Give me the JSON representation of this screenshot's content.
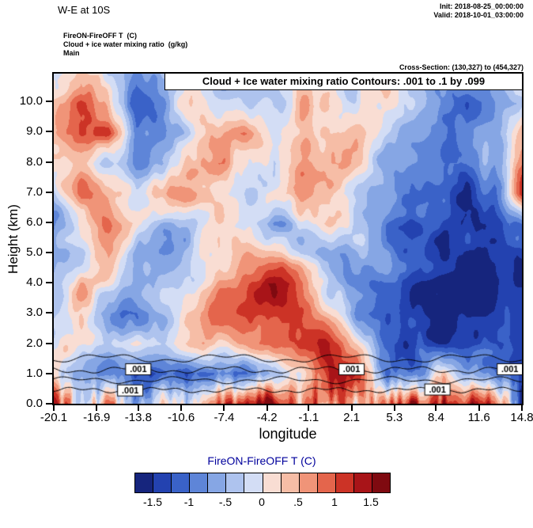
{
  "header": {
    "title": "W-E at 10S",
    "init": "Init: 2018-08-25_00:00:00",
    "valid": "Valid: 2018-10-01_03:00:00",
    "field_line1": "FireON-FireOFF T  (C)",
    "field_line2": "Cloud + ice water mixing ratio  (g/kg)",
    "field_line3": "Main",
    "cross_section": "Cross-Section: (130,327) to (454,327)"
  },
  "plot": {
    "inner_title": "Cloud + Ice water mixing ratio Contours: .001 to .1 by .099",
    "xlabel": "longitude",
    "ylabel": "Height (km)"
  },
  "colorbar": {
    "title": "FireON-FireOFF T  (C)",
    "title_color": "#00009c",
    "tick_labels": [
      "-1.5",
      "-1",
      "-.5",
      "0",
      ".5",
      "1",
      "1.5"
    ],
    "tick_values": [
      -1.5,
      -1,
      -0.5,
      0,
      0.5,
      1,
      1.5
    ]
  },
  "chart_data": {
    "type": "heatmap",
    "title": "FireON-FireOFF T (C) shaded, Cloud + Ice water mixing ratio contours .001 to .1 by .099",
    "xlabel": "longitude",
    "ylabel": "Height (km)",
    "xlim": [
      -20.1,
      14.8
    ],
    "ylim": [
      0,
      10.92
    ],
    "x_ticks": [
      "-20.1",
      "-16.9",
      "-13.8",
      "-10.6",
      "-7.4",
      "-4.2",
      "-1.1",
      "2.1",
      "5.3",
      "8.4",
      "11.6",
      "14.8"
    ],
    "x_tick_values": [
      -20.1,
      -16.9,
      -13.8,
      -10.6,
      -7.4,
      -4.2,
      -1.1,
      2.1,
      5.3,
      8.4,
      11.6,
      14.8
    ],
    "y_ticks": [
      "0.0",
      "1.0",
      "2.0",
      "3.0",
      "4.0",
      "5.0",
      "6.0",
      "7.0",
      "8.0",
      "9.0",
      "10.0"
    ],
    "y_tick_values": [
      0,
      1,
      2,
      3,
      4,
      5,
      6,
      7,
      8,
      9,
      10
    ],
    "levels": [
      -1.75,
      -1.5,
      -1.25,
      -1.0,
      -0.75,
      -0.5,
      -0.25,
      0,
      0.25,
      0.5,
      0.75,
      1.0,
      1.25,
      1.5,
      1.75
    ],
    "colors": [
      "#16257d",
      "#2342b0",
      "#3a62c8",
      "#5e85d8",
      "#86a6e4",
      "#aec3ee",
      "#d3ddf5",
      "#f9ddd3",
      "#f6bda6",
      "#f09478",
      "#e4654c",
      "#cc3326",
      "#a81418",
      "#7f0a10"
    ],
    "grid": {
      "nx": 18,
      "ny": 12,
      "row_order": "bottom_to_top",
      "values": [
        [
          1.3,
          -0.4,
          0.6,
          -0.6,
          0.5,
          -0.3,
          0.9,
          1.1,
          1.3,
          0.6,
          1.0,
          0.5,
          0.8,
          1.2,
          1.4,
          0.9,
          1.2,
          -1.5
        ],
        [
          0.4,
          -0.7,
          -1.1,
          -1.3,
          -0.9,
          -1.1,
          -0.8,
          -1.0,
          -0.6,
          0.3,
          1.3,
          1.5,
          -0.7,
          -1.1,
          0.4,
          -0.4,
          -0.8,
          -1.6
        ],
        [
          -0.2,
          0.2,
          -0.4,
          0.1,
          -0.3,
          0.3,
          0.4,
          0.5,
          0.7,
          1.1,
          1.2,
          0.4,
          -1.0,
          -1.3,
          -1.5,
          -1.6,
          -1.5,
          -1.3
        ],
        [
          -0.3,
          0.3,
          -0.6,
          -0.9,
          -0.4,
          0.3,
          0.8,
          1.0,
          1.2,
          1.0,
          0.2,
          -0.8,
          -1.2,
          -1.4,
          -1.6,
          -1.7,
          -1.6,
          -1.3
        ],
        [
          -0.2,
          0.4,
          0.1,
          -0.7,
          -0.5,
          -0.2,
          0.5,
          1.0,
          1.5,
          0.8,
          -0.4,
          -0.9,
          -1.1,
          -1.3,
          -1.5,
          -1.6,
          -1.7,
          -1.4
        ],
        [
          -0.6,
          -0.2,
          0.3,
          -0.5,
          -0.8,
          -0.3,
          0.2,
          0.5,
          0.4,
          -0.3,
          -0.6,
          -0.5,
          -0.8,
          -1.2,
          -1.4,
          -1.5,
          -1.6,
          -1.5
        ],
        [
          -0.7,
          0.3,
          0.6,
          0.2,
          -0.6,
          -0.4,
          0.3,
          -0.2,
          -0.7,
          -0.3,
          0.4,
          -0.3,
          -0.9,
          -1.3,
          -1.2,
          -1.4,
          -1.5,
          -0.9
        ],
        [
          -0.3,
          0.7,
          0.4,
          -0.2,
          0.3,
          0.5,
          0.2,
          -0.4,
          0.3,
          0.5,
          0.2,
          -0.4,
          -0.6,
          -1.0,
          -1.2,
          -1.3,
          -1.1,
          1.0
        ],
        [
          0.2,
          0.4,
          -0.3,
          -0.8,
          -0.5,
          0.3,
          0.6,
          0.2,
          -0.3,
          0.4,
          0.6,
          0.2,
          -0.5,
          -0.8,
          -0.6,
          -1.0,
          -0.7,
          0.8
        ],
        [
          0.5,
          0.8,
          0.9,
          -1.0,
          -0.6,
          -0.2,
          0.3,
          0.5,
          -0.2,
          0.3,
          0.5,
          0.3,
          -0.3,
          -0.6,
          -0.9,
          -1.1,
          -0.5,
          0.4
        ],
        [
          0.3,
          0.9,
          0.2,
          -1.2,
          -0.8,
          0.2,
          -0.3,
          -0.6,
          -0.4,
          0.2,
          0.4,
          -0.2,
          0.3,
          -0.4,
          -0.8,
          -1.0,
          -0.6,
          -0.3
        ],
        [
          -0.2,
          0.4,
          -0.4,
          -0.7,
          -0.3,
          0.3,
          -0.5,
          -0.8,
          -0.6,
          0.3,
          0.2,
          -0.3,
          0.4,
          -0.3,
          -0.7,
          -0.9,
          -0.4,
          0.5
        ]
      ]
    },
    "texture": {
      "octaves": [
        {
          "sx": 1.5,
          "sy": 0.9,
          "amp": 0.28,
          "seed": 1
        },
        {
          "sx": 0.6,
          "sy": 0.45,
          "amp": 0.15,
          "seed": 2
        }
      ],
      "surface_stripes": {
        "below_km": 1.4,
        "sx": 0.3,
        "sy": 3.0,
        "amp": 0.55,
        "seed": 3
      }
    },
    "cloud_contours": {
      "level_label": ".001",
      "lines": [
        {
          "base": 1.5,
          "a1": 0.1,
          "f1": 0.7,
          "p1": 0.3,
          "a2": 0.06,
          "f2": 2.1,
          "p2": 1.0,
          "x0": -20.1,
          "x1": 14.8
        },
        {
          "base": 1.12,
          "a1": 0.08,
          "f1": 0.9,
          "p1": 2.0,
          "a2": 0.05,
          "f2": 2.7,
          "p2": 0.2,
          "x0": -20.1,
          "x1": 14.8
        },
        {
          "base": 0.78,
          "a1": 0.07,
          "f1": 0.8,
          "p1": 4.0,
          "a2": 0.05,
          "f2": 2.3,
          "p2": 2.5,
          "x0": -20.1,
          "x1": 14.8
        },
        {
          "base": 0.45,
          "a1": 0.06,
          "f1": 1.0,
          "p1": 1.2,
          "a2": 0.04,
          "f2": 3.1,
          "p2": 4.0,
          "x0": -20.1,
          "x1": 14.8
        }
      ],
      "labels": [
        {
          "x": -13.8,
          "y": 1.14
        },
        {
          "x": 2.1,
          "y": 1.14
        },
        {
          "x": 13.9,
          "y": 1.14
        },
        {
          "x": -14.4,
          "y": 0.44
        },
        {
          "x": 8.5,
          "y": 0.47
        }
      ]
    }
  }
}
